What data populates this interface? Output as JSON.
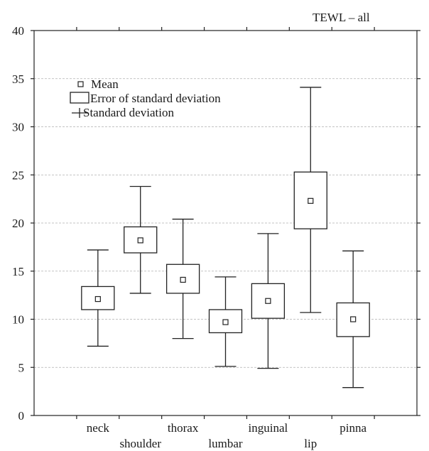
{
  "chart_data": {
    "type": "box",
    "title": "TEWL – all",
    "xlabel": "",
    "ylabel": "",
    "ylim": [
      0,
      40
    ],
    "yticks": [
      "0",
      "5",
      "10",
      "15",
      "20",
      "25",
      "30",
      "35",
      "40"
    ],
    "grid": true,
    "legend_position": "top-left",
    "legend": {
      "mean": "Mean",
      "box": "Error of standard deviation",
      "whisker": "Standard deviation"
    },
    "categories": [
      "neck",
      "shoulder",
      "thorax",
      "lumbar",
      "inguinal",
      "lip",
      "pinna"
    ],
    "mean": [
      12.1,
      18.2,
      14.1,
      9.7,
      11.9,
      22.3,
      10.0
    ],
    "box_low": [
      11.0,
      16.9,
      12.7,
      8.6,
      10.1,
      19.4,
      8.2
    ],
    "box_high": [
      13.4,
      19.6,
      15.7,
      11.0,
      13.7,
      25.3,
      11.7
    ],
    "whisker_low": [
      7.2,
      12.7,
      8.0,
      5.1,
      4.9,
      10.7,
      2.9
    ],
    "whisker_high": [
      17.2,
      23.8,
      20.4,
      14.4,
      18.9,
      34.1,
      17.1
    ]
  }
}
